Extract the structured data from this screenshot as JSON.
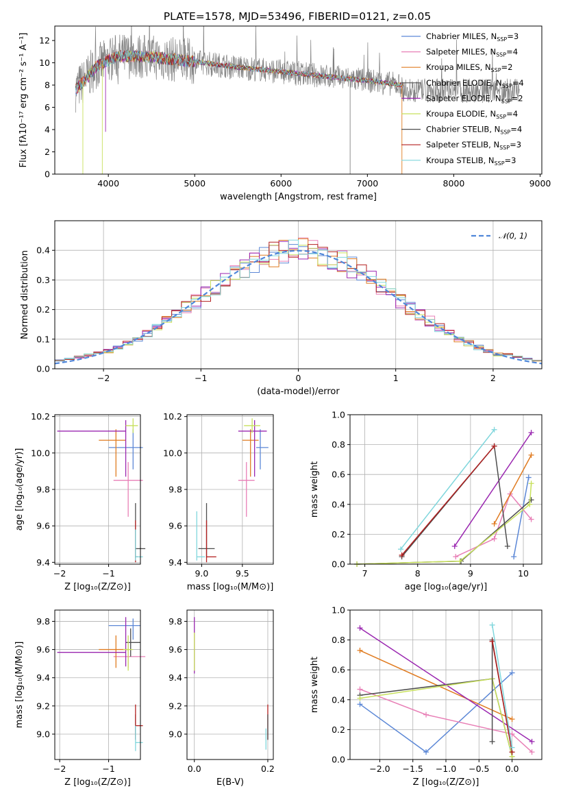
{
  "colors": {
    "Chabrier MILES": "#5b87d6",
    "Salpeter MILES": "#e87fb6",
    "Kroupa MILES": "#e07b20",
    "Chabrier ELODIE": "#4d4d4d",
    "Salpeter ELODIE": "#9a26b0",
    "Kroupa ELODIE": "#c7e05a",
    "Chabrier STELIB": "#4d4d4d",
    "Salpeter STELIB": "#b31f1f",
    "Kroupa STELIB": "#7fd6dc",
    "data": "#808080",
    "normal": "#4f86d9"
  },
  "chart_data": [
    {
      "id": "spectrum",
      "type": "line",
      "title": "PLATE=1578, MJD=53496, FIBERID=0121, z=0.05",
      "xlabel": "wavelength [Angstrom, rest frame]",
      "ylabel": "Flux [fλ10⁻¹⁷ erg cm⁻² s⁻¹ A⁻¹]",
      "xlim": [
        3380,
        9020
      ],
      "ylim": [
        0,
        13.3
      ],
      "xticks": [
        4000,
        5000,
        6000,
        7000,
        8000,
        9000
      ],
      "yticks": [
        0,
        2,
        4,
        6,
        8,
        10,
        12
      ],
      "grid": false,
      "legend_position": "top-right",
      "continuum": {
        "x": [
          3620,
          3700,
          3850,
          3950,
          4100,
          4300,
          4500,
          5000,
          5500,
          6000,
          6500,
          7000,
          7400
        ],
        "y": [
          7.6,
          8.2,
          9.6,
          10.0,
          10.6,
          10.6,
          10.5,
          10.1,
          9.6,
          9.2,
          8.8,
          8.4,
          8.0
        ]
      },
      "series": [
        {
          "name": "Chabrier MILES, N",
          "sub": "SSP",
          "tail": "=3"
        },
        {
          "name": "Salpeter MILES, N",
          "sub": "SSP",
          "tail": "=4"
        },
        {
          "name": "Kroupa MILES, N",
          "sub": "SSP",
          "tail": "=2"
        },
        {
          "name": "Chabrier ELODIE, N",
          "sub": "SSP",
          "tail": "=4"
        },
        {
          "name": "Salpeter ELODIE, N",
          "sub": "SSP",
          "tail": "=2"
        },
        {
          "name": "Kroupa ELODIE, N",
          "sub": "SSP",
          "tail": "=4"
        },
        {
          "name": "Chabrier STELIB, N",
          "sub": "SSP",
          "tail": "=4"
        },
        {
          "name": "Salpeter STELIB, N",
          "sub": "SSP",
          "tail": "=3"
        },
        {
          "name": "Kroupa STELIB, N",
          "sub": "SSP",
          "tail": "=3"
        }
      ]
    },
    {
      "id": "residuals",
      "type": "histogram",
      "xlabel": "(data-model)/error",
      "ylabel": "Normed distribution",
      "xlim": [
        -2.5,
        2.5
      ],
      "ylim": [
        0,
        0.5
      ],
      "xticks": [
        -2,
        -1,
        0,
        1,
        2
      ],
      "yticks": [
        0.0,
        0.1,
        0.2,
        0.3,
        0.4
      ],
      "grid": true,
      "legend_position": "top-right",
      "legend_label": "𝒩(0, 1)",
      "bin_width": 0.1,
      "x_start": -2.5
    },
    {
      "id": "age_vs_Z",
      "type": "errorbar",
      "xlabel": "Z [log₁₀(Z/Z⊙)]",
      "ylabel": "age  [log₁₀(age/yr)]",
      "xlim": [
        -2.1,
        -0.35
      ],
      "ylim": [
        9.39,
        10.21
      ],
      "xticks": [
        -2,
        -1
      ],
      "yticks": [
        9.4,
        9.6,
        9.8,
        10.0,
        10.2
      ],
      "grid": true,
      "points": [
        {
          "m": "Chabrier MILES",
          "x": -0.5,
          "y": 10.03,
          "xerr": [
            0.5,
            0.2
          ],
          "yerr": [
            0.12,
            0.1
          ]
        },
        {
          "m": "Salpeter MILES",
          "x": -0.6,
          "y": 9.85,
          "xerr": [
            0.3,
            0.3
          ],
          "yerr": [
            0.2,
            0.1
          ]
        },
        {
          "m": "Kroupa MILES",
          "x": -0.85,
          "y": 10.07,
          "xerr": [
            0.35,
            0.2
          ],
          "yerr": [
            0.2,
            0.06
          ]
        },
        {
          "m": "Salpeter ELODIE",
          "x": -0.65,
          "y": 10.12,
          "xerr": [
            1.4,
            0.0
          ],
          "yerr": [
            0.25,
            0.06
          ]
        },
        {
          "m": "Kroupa ELODIE",
          "x": -0.5,
          "y": 10.15,
          "xerr": [
            0.15,
            0.1
          ],
          "yerr": [
            0.04,
            0.04
          ]
        },
        {
          "m": "Chabrier STELIB",
          "x": -0.45,
          "y": 9.475,
          "xerr": [
            0.0,
            0.2
          ],
          "yerr": [
            0.05,
            0.25
          ]
        },
        {
          "m": "Salpeter STELIB",
          "x": -0.45,
          "y": 9.43,
          "xerr": [
            0.0,
            0.05
          ],
          "yerr": [
            0.03,
            0.2
          ]
        },
        {
          "m": "Kroupa STELIB",
          "x": -0.45,
          "y": 9.43,
          "xerr": [
            0.0,
            0.15
          ],
          "yerr": [
            0.02,
            0.15
          ]
        }
      ]
    },
    {
      "id": "age_vs_mass",
      "type": "errorbar",
      "xlabel": "mass [log₁₀(M/M⊙)]",
      "ylabel": "",
      "xlim": [
        8.82,
        9.88
      ],
      "ylim": [
        9.39,
        10.21
      ],
      "xticks": [
        9.0,
        9.5
      ],
      "yticks": [
        9.4,
        9.6,
        9.8,
        10.0,
        10.2
      ],
      "grid": true,
      "points": [
        {
          "m": "Chabrier MILES",
          "x": 9.72,
          "y": 10.03,
          "xerr": [
            0.05,
            0.1
          ],
          "yerr": [
            0.12,
            0.1
          ]
        },
        {
          "m": "Salpeter MILES",
          "x": 9.55,
          "y": 9.85,
          "xerr": [
            0.1,
            0.1
          ],
          "yerr": [
            0.2,
            0.1
          ]
        },
        {
          "m": "Kroupa MILES",
          "x": 9.6,
          "y": 10.07,
          "xerr": [
            0.1,
            0.1
          ],
          "yerr": [
            0.2,
            0.06
          ]
        },
        {
          "m": "Salpeter ELODIE",
          "x": 9.65,
          "y": 10.12,
          "xerr": [
            0.2,
            0.15
          ],
          "yerr": [
            0.25,
            0.06
          ]
        },
        {
          "m": "Kroupa ELODIE",
          "x": 9.62,
          "y": 10.15,
          "xerr": [
            0.1,
            0.1
          ],
          "yerr": [
            0.04,
            0.04
          ]
        },
        {
          "m": "Chabrier STELIB",
          "x": 9.06,
          "y": 9.475,
          "xerr": [
            0.1,
            0.1
          ],
          "yerr": [
            0.05,
            0.25
          ]
        },
        {
          "m": "Salpeter STELIB",
          "x": 9.06,
          "y": 9.43,
          "xerr": [
            0.0,
            0.12
          ],
          "yerr": [
            0.03,
            0.2
          ]
        },
        {
          "m": "Kroupa STELIB",
          "x": 8.94,
          "y": 9.43,
          "xerr": [
            0.0,
            0.1
          ],
          "yerr": [
            0.02,
            0.25
          ]
        }
      ]
    },
    {
      "id": "weight_vs_age",
      "type": "line",
      "xlabel": "age  [log₁₀(age/yr)]",
      "ylabel": "mass weight",
      "xlim": [
        6.72,
        10.35
      ],
      "ylim": [
        0,
        1
      ],
      "xticks": [
        7,
        8,
        9,
        10
      ],
      "yticks": [
        0.0,
        0.2,
        0.4,
        0.6,
        0.8,
        1.0
      ],
      "grid": true,
      "series": [
        {
          "m": "Chabrier MILES",
          "x": [
            9.82,
            10.1
          ],
          "y": [
            0.05,
            0.58
          ]
        },
        {
          "m": "Salpeter MILES",
          "x": [
            8.72,
            9.45,
            9.75,
            10.15
          ],
          "y": [
            0.05,
            0.17,
            0.47,
            0.3
          ]
        },
        {
          "m": "Kroupa MILES",
          "x": [
            9.45,
            10.15
          ],
          "y": [
            0.27,
            0.73
          ]
        },
        {
          "m": "Chabrier ELODIE",
          "x": [
            6.85,
            8.82,
            10.15
          ],
          "y": [
            0.0,
            0.02,
            0.43
          ]
        },
        {
          "m": "Salpeter ELODIE",
          "x": [
            8.7,
            10.15
          ],
          "y": [
            0.12,
            0.88
          ]
        },
        {
          "m": "Kroupa ELODIE",
          "x": [
            6.85,
            8.8,
            10.12,
            10.15
          ],
          "y": [
            0.0,
            0.02,
            0.4,
            0.54
          ]
        },
        {
          "m": "Chabrier STELIB",
          "x": [
            7.7,
            9.45,
            9.7
          ],
          "y": [
            0.05,
            0.79,
            0.12
          ]
        },
        {
          "m": "Salpeter STELIB",
          "x": [
            7.7,
            9.45
          ],
          "y": [
            0.06,
            0.79
          ]
        },
        {
          "m": "Kroupa STELIB",
          "x": [
            7.68,
            9.45
          ],
          "y": [
            0.1,
            0.9
          ]
        }
      ]
    },
    {
      "id": "mass_vs_Z",
      "type": "errorbar",
      "xlabel": "Z [log₁₀(Z/Z⊙)]",
      "ylabel": "mass [log₁₀(M/M⊙)]",
      "xlim": [
        -2.1,
        -0.35
      ],
      "ylim": [
        8.82,
        9.88
      ],
      "xticks": [
        -2,
        -1
      ],
      "yticks": [
        9.0,
        9.2,
        9.4,
        9.6,
        9.8
      ],
      "grid": true,
      "points": [
        {
          "m": "Chabrier MILES",
          "x": -0.5,
          "y": 9.77,
          "xerr": [
            0.5,
            0.15
          ],
          "yerr": [
            0.1,
            0.05
          ]
        },
        {
          "m": "Salpeter MILES",
          "x": -0.6,
          "y": 9.55,
          "xerr": [
            0.3,
            0.35
          ],
          "yerr": [
            0.08,
            0.1
          ]
        },
        {
          "m": "Kroupa MILES",
          "x": -0.85,
          "y": 9.6,
          "xerr": [
            0.35,
            0.25
          ],
          "yerr": [
            0.13,
            0.1
          ]
        },
        {
          "m": "Chabrier ELODIE",
          "x": -0.55,
          "y": 9.65,
          "xerr": [
            0.1,
            0.2
          ],
          "yerr": [
            0.1,
            0.1
          ]
        },
        {
          "m": "Salpeter ELODIE",
          "x": -0.65,
          "y": 9.58,
          "xerr": [
            1.4,
            0.0
          ],
          "yerr": [
            0.1,
            0.25
          ]
        },
        {
          "m": "Kroupa ELODIE",
          "x": -0.6,
          "y": 9.6,
          "xerr": [
            0.1,
            0.1
          ],
          "yerr": [
            0.15,
            0.1
          ]
        },
        {
          "m": "Chabrier STELIB",
          "x": -0.45,
          "y": 9.06,
          "xerr": [
            0.0,
            0.0
          ],
          "yerr": [
            0.1,
            0.08
          ]
        },
        {
          "m": "Salpeter STELIB",
          "x": -0.45,
          "y": 9.06,
          "xerr": [
            0.0,
            0.15
          ],
          "yerr": [
            0.1,
            0.15
          ]
        },
        {
          "m": "Kroupa STELIB",
          "x": -0.45,
          "y": 8.94,
          "xerr": [
            0.0,
            0.15
          ],
          "yerr": [
            0.06,
            0.12
          ]
        }
      ]
    },
    {
      "id": "mass_vs_EBV",
      "type": "errorbar",
      "xlabel": "E(B-V)",
      "ylabel": "",
      "xlim": [
        -0.02,
        0.215
      ],
      "ylim": [
        8.82,
        9.88
      ],
      "xticks": [
        0.0,
        0.2
      ],
      "yticks": [
        9.0,
        9.2,
        9.4,
        9.6,
        9.8
      ],
      "grid": true,
      "points": [
        {
          "m": "Salpeter ELODIE",
          "x": 0.0,
          "y": 9.58,
          "xerr": [
            0,
            0
          ],
          "yerr": [
            0.15,
            0.25
          ]
        },
        {
          "m": "Kroupa ELODIE",
          "x": 0.0,
          "y": 9.6,
          "xerr": [
            0,
            0
          ],
          "yerr": [
            0.15,
            0.12
          ]
        },
        {
          "m": "Salpeter STELIB",
          "x": 0.2,
          "y": 9.06,
          "xerr": [
            0,
            0
          ],
          "yerr": [
            0.1,
            0.15
          ]
        },
        {
          "m": "Chabrier STELIB",
          "x": 0.2,
          "y": 9.06,
          "xerr": [
            0,
            0
          ],
          "yerr": [
            0.1,
            0.08
          ]
        },
        {
          "m": "Kroupa STELIB",
          "x": 0.195,
          "y": 8.94,
          "xerr": [
            0,
            0
          ],
          "yerr": [
            0.05,
            0.1
          ]
        }
      ]
    },
    {
      "id": "weight_vs_Z",
      "type": "line",
      "xlabel": "Z [log₁₀(Z/Z⊙)]",
      "ylabel": "mass weight",
      "xlim": [
        -2.45,
        0.45
      ],
      "ylim": [
        0,
        1
      ],
      "xticks": [
        -2.0,
        -1.5,
        -1.0,
        -0.5,
        0.0
      ],
      "yticks": [
        0.0,
        0.2,
        0.4,
        0.6,
        0.8,
        1.0
      ],
      "grid": true,
      "series": [
        {
          "m": "Chabrier MILES",
          "x": [
            -2.3,
            -1.3,
            0.0
          ],
          "y": [
            0.37,
            0.05,
            0.58
          ]
        },
        {
          "m": "Salpeter MILES",
          "x": [
            -2.3,
            -1.3,
            0.0,
            0.3
          ],
          "y": [
            0.47,
            0.3,
            0.17,
            0.05
          ]
        },
        {
          "m": "Kroupa MILES",
          "x": [
            -2.3,
            0.0
          ],
          "y": [
            0.73,
            0.27
          ]
        },
        {
          "m": "Chabrier ELODIE",
          "x": [
            -2.3,
            -0.3,
            0.0
          ],
          "y": [
            0.43,
            0.54,
            0.02
          ]
        },
        {
          "m": "Salpeter ELODIE",
          "x": [
            -2.3,
            0.3
          ],
          "y": [
            0.88,
            0.12
          ]
        },
        {
          "m": "Kroupa ELODIE",
          "x": [
            -2.3,
            -0.3,
            0.0
          ],
          "y": [
            0.41,
            0.54,
            0.02
          ]
        },
        {
          "m": "Chabrier STELIB",
          "x": [
            -0.3,
            -0.3,
            0.0
          ],
          "y": [
            0.12,
            0.8,
            0.05
          ]
        },
        {
          "m": "Salpeter STELIB",
          "x": [
            -0.3,
            0.0
          ],
          "y": [
            0.79,
            0.05
          ]
        },
        {
          "m": "Kroupa STELIB",
          "x": [
            -0.3,
            0.0
          ],
          "y": [
            0.9,
            0.08
          ]
        }
      ]
    }
  ]
}
